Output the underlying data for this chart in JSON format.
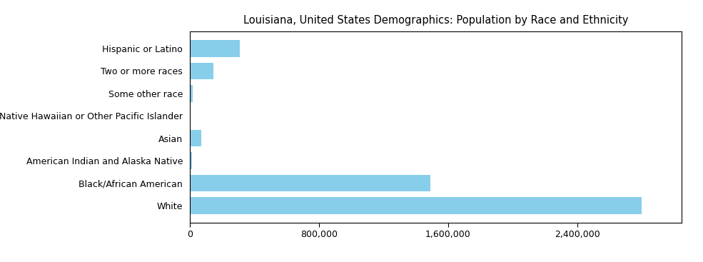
{
  "title": "Louisiana, United States Demographics: Population by Race and Ethnicity",
  "categories": [
    "White",
    "Black/African American",
    "American Indian and Alaska Native",
    "Asian",
    "Native Hawaiian or Other Pacific Islander",
    "Some other race",
    "Two or more races",
    "Hispanic or Latino"
  ],
  "values": [
    2800000,
    1490000,
    15000,
    72000,
    4000,
    20000,
    148000,
    310000
  ],
  "bar_color": "#87CEEB",
  "xlim": [
    0,
    3050000
  ],
  "xticks": [
    0,
    800000,
    1600000,
    2400000
  ],
  "background_color": "#ffffff",
  "title_fontsize": 10.5,
  "tick_fontsize": 9,
  "label_fontsize": 9,
  "bar_height": 0.75,
  "figsize": [
    9.85,
    3.67
  ],
  "dpi": 100
}
